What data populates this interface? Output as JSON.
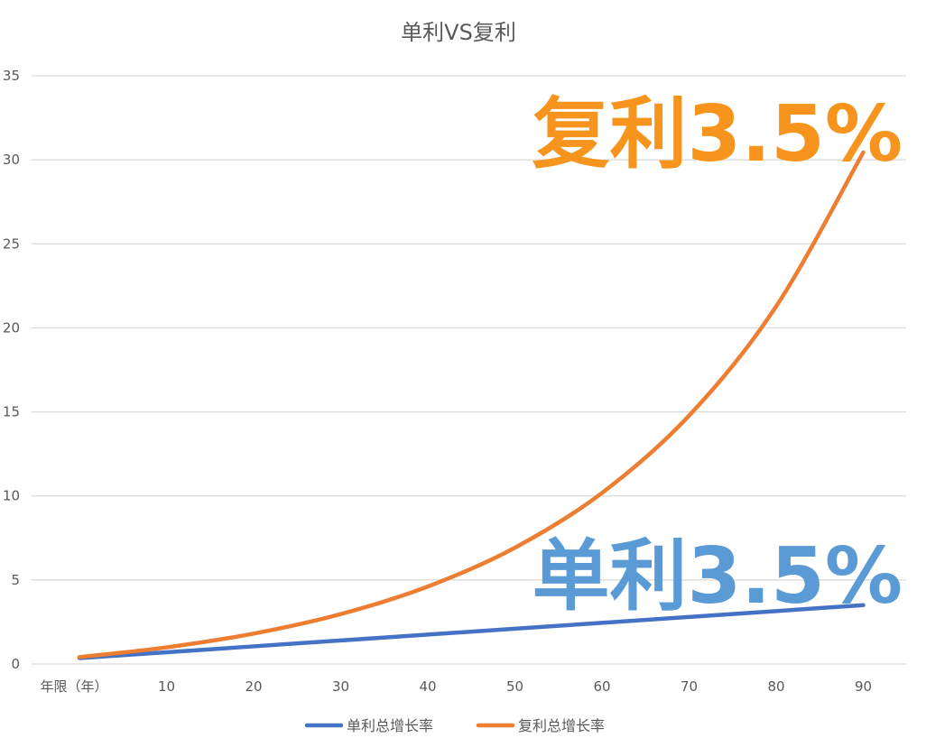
{
  "chart_data": {
    "type": "line",
    "title": "单利VS复利",
    "x_first_label": "年限（年）",
    "x": [
      0,
      10,
      20,
      30,
      40,
      50,
      60,
      70,
      80,
      90
    ],
    "x_tick_labels": [
      "年限（年）",
      "10",
      "20",
      "30",
      "40",
      "50",
      "60",
      "70",
      "80",
      "90"
    ],
    "y_ticks": [
      0,
      5,
      10,
      15,
      20,
      25,
      30,
      35
    ],
    "ylim": [
      0,
      35
    ],
    "grid": true,
    "legend_position": "bottom",
    "series": [
      {
        "name": "单利总增长率",
        "color": "#4472C4",
        "values": [
          0.35,
          0.7,
          1.05,
          1.4,
          1.75,
          2.1,
          2.45,
          2.8,
          3.15,
          3.5
        ]
      },
      {
        "name": "复利总增长率",
        "color": "#ED7D31",
        "values": [
          0.41,
          0.99,
          1.81,
          2.97,
          4.61,
          6.92,
          10.18,
          14.78,
          21.28,
          30.44
        ]
      }
    ],
    "annotations": [
      {
        "text": "复利3.5%",
        "color": "#F7941D"
      },
      {
        "text": "单利3.5%",
        "color": "#5B9BD5"
      }
    ],
    "colors": {
      "grid": "#D9D9D9",
      "axis_text": "#595959"
    }
  }
}
